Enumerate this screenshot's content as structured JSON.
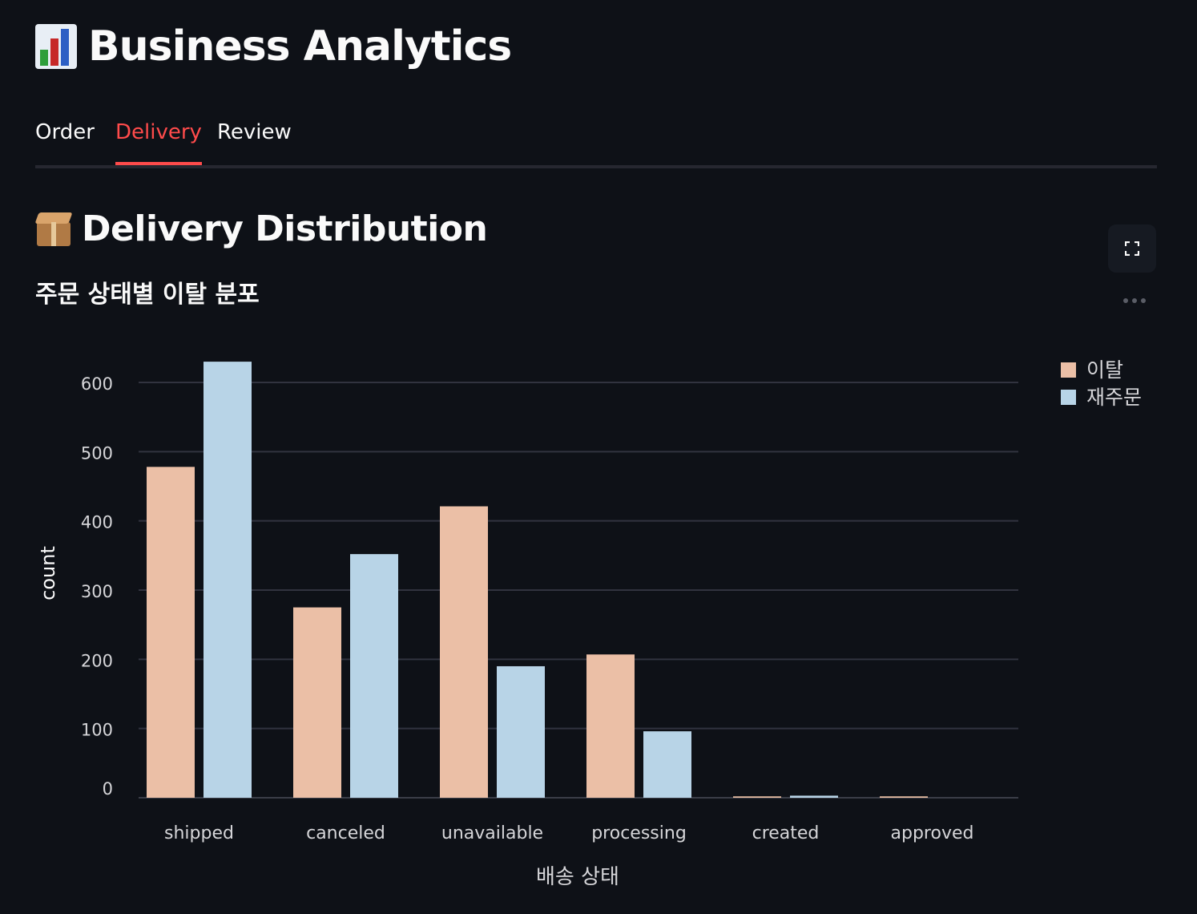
{
  "page": {
    "title_icon": "bar-chart-emoji-icon",
    "title": "Business Analytics"
  },
  "tabs": [
    {
      "label": "Order",
      "active": false
    },
    {
      "label": "Delivery",
      "active": true
    },
    {
      "label": "Review",
      "active": false
    }
  ],
  "section": {
    "icon": "package-emoji-icon",
    "title": "Delivery Distribution",
    "subtitle": "주문 상태별 이탈 분포"
  },
  "toolbar": {
    "fullscreen_icon": "fullscreen-icon",
    "more_icon": "more-options-icon"
  },
  "colors": {
    "background": "#0e1117",
    "accent": "#ff4b4b",
    "series_churn": "#ebbfa6",
    "series_reorder": "#b8d4e7",
    "gridline": "#31333f"
  },
  "chart_data": {
    "type": "bar",
    "categories": [
      "shipped",
      "canceled",
      "unavailable",
      "processing",
      "created",
      "approved"
    ],
    "series": [
      {
        "name": "이탈",
        "values": [
          478,
          275,
          421,
          207,
          2,
          2
        ]
      },
      {
        "name": "재주문",
        "values": [
          630,
          352,
          190,
          96,
          3,
          0
        ]
      }
    ],
    "xlabel": "배송 상태",
    "ylabel": "count",
    "ylim": [
      0,
      630
    ],
    "yticks": [
      0,
      100,
      200,
      300,
      400,
      500,
      600
    ],
    "grid": true,
    "legend": "top-right"
  }
}
